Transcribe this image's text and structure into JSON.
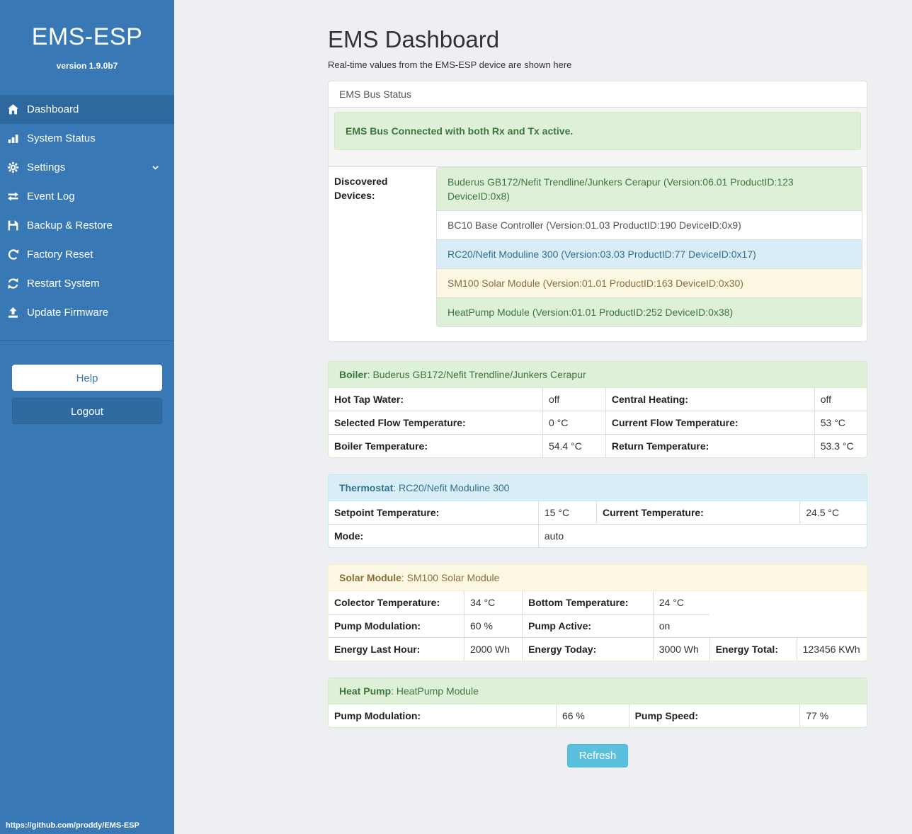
{
  "sidebar": {
    "brand": "EMS-ESP",
    "version": "version 1.9.0b7",
    "items": [
      {
        "label": "Dashboard",
        "icon": "home-icon",
        "active": true,
        "chevron": false
      },
      {
        "label": "System Status",
        "icon": "chart-icon",
        "active": false,
        "chevron": false
      },
      {
        "label": "Settings",
        "icon": "gear-icon",
        "active": false,
        "chevron": true
      },
      {
        "label": "Event Log",
        "icon": "exchange-icon",
        "active": false,
        "chevron": false
      },
      {
        "label": "Backup & Restore",
        "icon": "save-icon",
        "active": false,
        "chevron": false
      },
      {
        "label": "Factory Reset",
        "icon": "refresh-icon",
        "active": false,
        "chevron": false
      },
      {
        "label": "Restart System",
        "icon": "sync-icon",
        "active": false,
        "chevron": false
      },
      {
        "label": "Update Firmware",
        "icon": "upload-icon",
        "active": false,
        "chevron": false
      }
    ],
    "help_label": "Help",
    "logout_label": "Logout",
    "footer_url": "https://github.com/proddy/EMS-ESP"
  },
  "header": {
    "title": "EMS Dashboard",
    "subtitle": "Real-time values from the EMS-ESP device are shown here"
  },
  "bus_panel": {
    "title": "EMS Bus Status",
    "alert": "EMS Bus Connected with both Rx and Tx active.",
    "devices_label": "Discovered Devices:",
    "devices": [
      {
        "text": "Buderus GB172/Nefit Trendline/Junkers Cerapur (Version:06.01 ProductID:123 DeviceID:0x8)",
        "variant": "success"
      },
      {
        "text": "BC10 Base Controller (Version:01.03 ProductID:190 DeviceID:0x9)",
        "variant": "default"
      },
      {
        "text": "RC20/Nefit Moduline 300 (Version:03.03 ProductID:77 DeviceID:0x17)",
        "variant": "info"
      },
      {
        "text": "SM100 Solar Module (Version:01.01 ProductID:163 DeviceID:0x30)",
        "variant": "warning"
      },
      {
        "text": "HeatPump Module (Version:01.01 ProductID:252 DeviceID:0x38)",
        "variant": "success"
      }
    ]
  },
  "device_panels": [
    {
      "id": "boiler",
      "variant": "success",
      "name": "Boiler",
      "separator": ": ",
      "device": "Buderus GB172/Nefit Trendline/Junkers Cerapur",
      "cols": [
        "39.8%",
        "11.7%",
        "38.8%",
        "9.7%"
      ],
      "rows": [
        [
          {
            "label": "Hot Tap Water:",
            "value": "off"
          },
          {
            "label": "Central Heating:",
            "value": "off"
          }
        ],
        [
          {
            "label": "Selected Flow Temperature:",
            "value": "0 °C"
          },
          {
            "label": "Current Flow Temperature:",
            "value": "53 °C"
          }
        ],
        [
          {
            "label": "Boiler Temperature:",
            "value": "54.4 °C"
          },
          {
            "label": "Return Temperature:",
            "value": "53.3 °C"
          }
        ]
      ]
    },
    {
      "id": "thermostat",
      "variant": "info",
      "name": "Thermostat",
      "separator": ": ",
      "device": "RC20/Nefit Moduline 300",
      "cols": [
        "39%",
        "10.8%",
        "37.8%",
        "12.4%"
      ],
      "rows": [
        [
          {
            "label": "Setpoint Temperature:",
            "value": "15 °C"
          },
          {
            "label": "Current Temperature:",
            "value": "24.5 °C"
          }
        ],
        [
          {
            "label": "Mode:",
            "value": "auto",
            "value_span": 3
          }
        ]
      ]
    },
    {
      "id": "solar-module",
      "variant": "warning",
      "name": "Solar Module",
      "separator": ": ",
      "device": "SM100 Solar Module",
      "cols": [
        "25.2%",
        "10.8%",
        "24.3%",
        "10.5%",
        "16.2%",
        "13%"
      ],
      "rows": [
        [
          {
            "label": "Colector Temperature:",
            "value": "34 °C"
          },
          {
            "label": "Bottom Temperature:",
            "value": "24 °C"
          }
        ],
        [
          {
            "label": "Pump Modulation:",
            "value": "60 %"
          },
          {
            "label": "Pump Active:",
            "value": "on"
          }
        ],
        [
          {
            "label": "Energy Last Hour:",
            "value": "2000 Wh"
          },
          {
            "label": "Energy Today:",
            "value": "3000 Wh"
          },
          {
            "label": "Energy Total:",
            "value": "123456 KWh"
          }
        ]
      ]
    },
    {
      "id": "heat-pump",
      "variant": "success",
      "name": "Heat Pump",
      "separator": ": ",
      "device": "HeatPump Module",
      "cols": [
        "42.3%",
        "13.5%",
        "31.8%",
        "12.4%"
      ],
      "rows": [
        [
          {
            "label": "Pump Modulation:",
            "value": "66 %"
          },
          {
            "label": "Pump Speed:",
            "value": "77 %"
          }
        ]
      ]
    }
  ],
  "refresh_label": "Refresh",
  "colors": {
    "sidebar_blue": "#3878b5",
    "refresh_button": "#5bc0de",
    "success_text": "#3c763d",
    "info_text": "#31708f",
    "warning_text": "#8a6d3b"
  }
}
